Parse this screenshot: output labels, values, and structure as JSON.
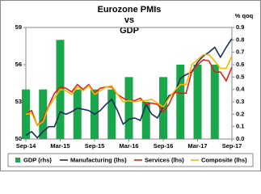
{
  "chart_data": {
    "type": "combo",
    "title": [
      "Eurozone PMIs",
      "vs",
      "GDP"
    ],
    "y2_label": "% qoq",
    "categories": [
      "Sep-14",
      null,
      null,
      null,
      null,
      null,
      "Mar-15",
      null,
      null,
      null,
      null,
      null,
      "Sep-15",
      null,
      null,
      null,
      null,
      null,
      "Mar-16",
      null,
      null,
      null,
      null,
      null,
      "Sep-16",
      null,
      null,
      null,
      null,
      null,
      "Mar-17",
      null,
      null,
      null,
      null,
      null,
      "Sep-17"
    ],
    "ylim": [
      50,
      59
    ],
    "yticks": [
      50,
      53,
      56,
      59
    ],
    "y2lim": [
      0,
      0.9
    ],
    "y2ticks": [
      {
        "value": 0,
        "label": "0.0"
      },
      0.1,
      0.2,
      0.3,
      0.4,
      0.5,
      0.6,
      0.7,
      0.8,
      0.9
    ],
    "legend": "bottom",
    "series": [
      {
        "name": "GDP (rhs)",
        "type": "bar",
        "axis": "y2",
        "color": "#1aa64a",
        "values": [
          0.4,
          null,
          null,
          0.4,
          null,
          null,
          0.8,
          null,
          null,
          0.4,
          null,
          null,
          0.4,
          null,
          null,
          0.4,
          null,
          null,
          0.5,
          null,
          null,
          0.3,
          null,
          null,
          0.5,
          null,
          null,
          0.6,
          null,
          null,
          0.6,
          null,
          null,
          0.6,
          null,
          null,
          null
        ]
      },
      {
        "name": "Manufacturing (lhs)",
        "type": "line",
        "color": "#1f2f5c",
        "values": [
          50.3,
          50.6,
          50.1,
          50.6,
          51.0,
          51.0,
          52.2,
          52.0,
          52.2,
          52.5,
          52.4,
          52.3,
          52.0,
          52.3,
          52.8,
          53.2,
          52.3,
          51.2,
          51.6,
          51.7,
          51.5,
          52.8,
          52.0,
          51.7,
          52.6,
          53.5,
          53.7,
          54.9,
          55.2,
          55.4,
          56.2,
          56.7,
          57.0,
          57.4,
          56.6,
          57.4,
          58.1
        ]
      },
      {
        "name": "Services (lhs)",
        "type": "line",
        "color": "#e0201b",
        "values": [
          52.0,
          52.3,
          51.1,
          51.6,
          52.7,
          53.7,
          54.2,
          54.1,
          53.8,
          54.4,
          54.0,
          54.4,
          53.7,
          54.1,
          54.2,
          54.2,
          53.6,
          53.3,
          53.1,
          53.1,
          53.3,
          52.8,
          52.9,
          52.8,
          52.2,
          52.8,
          53.8,
          53.7,
          53.7,
          55.5,
          56.0,
          56.4,
          56.3,
          55.4,
          55.4,
          54.7,
          55.8
        ]
      },
      {
        "name": "Composite (lhs)",
        "type": "line",
        "color": "#f5b800",
        "values": [
          52.0,
          52.1,
          51.1,
          51.4,
          52.6,
          53.3,
          54.0,
          53.9,
          53.6,
          54.2,
          53.9,
          54.3,
          53.6,
          53.9,
          54.2,
          54.3,
          53.6,
          53.0,
          53.1,
          53.0,
          53.1,
          53.1,
          53.2,
          52.9,
          52.6,
          53.3,
          53.9,
          54.4,
          54.4,
          56.0,
          56.4,
          56.8,
          56.8,
          56.3,
          55.7,
          55.7,
          56.7
        ]
      }
    ]
  }
}
